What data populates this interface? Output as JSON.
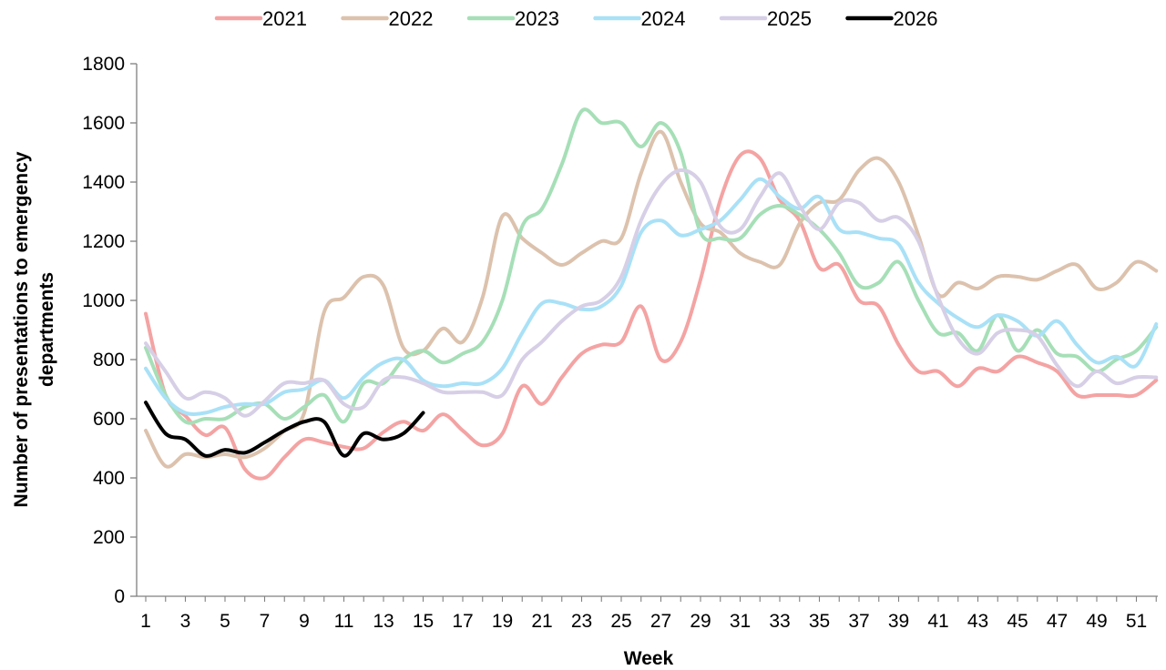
{
  "chart_data": {
    "type": "line",
    "xlabel": "Week",
    "ylabel_lines": [
      "Number of presentations to emergency",
      "departments"
    ],
    "ylim": [
      0,
      1800
    ],
    "yticks": [
      0,
      200,
      400,
      600,
      800,
      1000,
      1200,
      1400,
      1600,
      1800
    ],
    "xlim": [
      1,
      52
    ],
    "xticks": [
      1,
      3,
      5,
      7,
      9,
      11,
      13,
      15,
      17,
      19,
      21,
      23,
      25,
      27,
      29,
      31,
      33,
      35,
      37,
      39,
      41,
      43,
      45,
      47,
      49,
      51
    ],
    "grid": false,
    "legend_position": "top",
    "series": [
      {
        "name": "2021",
        "color": "#f4a3a3",
        "values": [
          955,
          680,
          610,
          545,
          570,
          430,
          400,
          470,
          530,
          520,
          505,
          500,
          555,
          590,
          560,
          615,
          560,
          510,
          550,
          710,
          650,
          740,
          820,
          850,
          860,
          980,
          800,
          860,
          1070,
          1340,
          1490,
          1480,
          1340,
          1270,
          1110,
          1120,
          1000,
          980,
          850,
          760,
          760,
          710,
          770,
          760,
          810,
          790,
          760,
          680,
          680,
          680,
          680,
          730
        ]
      },
      {
        "name": "2022",
        "color": "#dcc2ad",
        "values": [
          560,
          440,
          480,
          470,
          480,
          470,
          500,
          560,
          620,
          960,
          1010,
          1080,
          1050,
          840,
          830,
          905,
          860,
          1010,
          1285,
          1210,
          1160,
          1120,
          1160,
          1200,
          1210,
          1430,
          1570,
          1400,
          1260,
          1230,
          1160,
          1130,
          1120,
          1260,
          1330,
          1340,
          1440,
          1480,
          1400,
          1220,
          1020,
          1060,
          1040,
          1080,
          1080,
          1070,
          1100,
          1120,
          1040,
          1060,
          1130,
          1100
        ]
      },
      {
        "name": "2023",
        "color": "#a6dfb7",
        "values": [
          840,
          680,
          590,
          600,
          600,
          640,
          650,
          600,
          640,
          680,
          590,
          720,
          720,
          800,
          830,
          790,
          820,
          860,
          1000,
          1250,
          1310,
          1460,
          1640,
          1600,
          1600,
          1520,
          1600,
          1500,
          1230,
          1210,
          1210,
          1290,
          1320,
          1290,
          1240,
          1160,
          1050,
          1060,
          1130,
          1000,
          890,
          890,
          830,
          950,
          830,
          900,
          820,
          810,
          760,
          800,
          830,
          910
        ]
      },
      {
        "name": "2024",
        "color": "#a9e1f7",
        "values": [
          770,
          670,
          620,
          620,
          640,
          650,
          650,
          690,
          700,
          730,
          670,
          740,
          790,
          800,
          730,
          710,
          720,
          720,
          770,
          890,
          990,
          990,
          970,
          980,
          1050,
          1230,
          1270,
          1220,
          1240,
          1270,
          1340,
          1410,
          1350,
          1310,
          1350,
          1240,
          1230,
          1210,
          1190,
          1060,
          990,
          940,
          910,
          950,
          930,
          880,
          930,
          850,
          790,
          810,
          780,
          920
        ]
      },
      {
        "name": "2025",
        "color": "#d6cfe6",
        "values": [
          855,
          760,
          670,
          690,
          670,
          610,
          660,
          720,
          720,
          730,
          650,
          640,
          730,
          740,
          720,
          690,
          690,
          690,
          680,
          800,
          860,
          930,
          980,
          1000,
          1080,
          1270,
          1390,
          1440,
          1400,
          1250,
          1240,
          1350,
          1430,
          1320,
          1240,
          1330,
          1330,
          1270,
          1280,
          1200,
          1010,
          870,
          820,
          890,
          900,
          880,
          780,
          710,
          760,
          720,
          740,
          740
        ]
      },
      {
        "name": "2026",
        "color": "#000000",
        "values": [
          655,
          550,
          530,
          475,
          495,
          485,
          520,
          560,
          590,
          590,
          475,
          550,
          530,
          550,
          620
        ]
      }
    ]
  }
}
